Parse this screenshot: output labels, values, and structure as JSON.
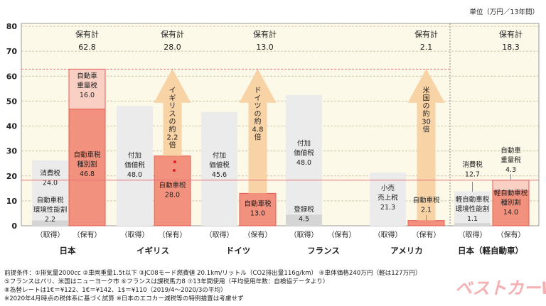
{
  "chart_data": {
    "type": "bar",
    "stacked": true,
    "unit_label": "単位（万円／13年間）",
    "ylim": [
      0,
      80
    ],
    "yticks": [
      0,
      10,
      20,
      30,
      40,
      50,
      60,
      70,
      80
    ],
    "grid": true,
    "colors": {
      "background": "#fdf9e8",
      "acq": "#ebebeb",
      "acq_dark": "#d5d5d5",
      "own": "#f2917d",
      "own_light": "#f9d0c3",
      "own_border": "#e65a55",
      "arrow": "#f8d3a6",
      "ref_line": "#e8707a"
    },
    "reference_lines": [
      {
        "value": 62.8,
        "style": "dashed"
      },
      {
        "value": 18.3,
        "style": "solid"
      }
    ],
    "groups": [
      {
        "name": "日本",
        "acq": {
          "label": "（取得）",
          "segments": [
            {
              "name": "自動車税 環境性能割",
              "value": 2.2
            },
            {
              "name": "消費税",
              "value": 24.0
            }
          ],
          "texts": [
            [
              "消費税",
              "24.0"
            ],
            [
              "自動車税",
              "環境性能割",
              "2.2"
            ]
          ]
        },
        "own": {
          "label": "（保有）",
          "segments": [
            {
              "name": "自動車税 種別割",
              "value": 46.8
            },
            {
              "name": "自動車重量税",
              "value": 16.0
            }
          ],
          "texts": [
            [
              "自動車",
              "重量税",
              "16.0"
            ],
            [
              "自動車税",
              "種別割",
              "46.8"
            ]
          ]
        },
        "total": {
          "label": "保有計",
          "value": "62.8"
        }
      },
      {
        "name": "イギリス",
        "acq": {
          "label": "（取得）",
          "segments": [
            {
              "name": "付加価値税",
              "value": 48.0
            }
          ],
          "texts": [
            [
              "付加",
              "価値税",
              "48.0"
            ]
          ]
        },
        "own": {
          "label": "（保有）",
          "segments": [
            {
              "name": "自動車税",
              "value": 28.0
            }
          ],
          "texts": [
            [
              "自動車税",
              "28.0"
            ]
          ]
        },
        "total": {
          "label": "保有計",
          "value": "28.0"
        },
        "arrow": "イギリスの約2.2倍"
      },
      {
        "name": "ドイツ",
        "acq": {
          "label": "（取得）",
          "segments": [
            {
              "name": "付加価値税",
              "value": 45.6
            }
          ],
          "texts": [
            [
              "付加",
              "価値税",
              "45.6"
            ]
          ]
        },
        "own": {
          "label": "（保有）",
          "segments": [
            {
              "name": "自動車税",
              "value": 13.0
            }
          ],
          "texts": [
            [
              "自動車税",
              "13.0"
            ]
          ]
        },
        "total": {
          "label": "保有計",
          "value": "13.0"
        },
        "arrow": "ドイツの約4.8倍"
      },
      {
        "name": "フランス",
        "acq": {
          "label": "（取得）",
          "segments": [
            {
              "name": "登録税",
              "value": 4.5
            },
            {
              "name": "付加価値税",
              "value": 48.0
            }
          ],
          "texts": [
            [
              "付加",
              "価値税",
              "48.0"
            ],
            [
              "登録税",
              "4.5"
            ]
          ]
        },
        "own": {
          "label": "（保有）",
          "segments": [],
          "texts": []
        }
      },
      {
        "name": "アメリカ",
        "acq": {
          "label": "（取得）",
          "segments": [
            {
              "name": "小売売上税",
              "value": 21.3
            }
          ],
          "texts": [
            [
              "小売",
              "売上税",
              "21.3"
            ]
          ]
        },
        "own": {
          "label": "（保有）",
          "segments": [
            {
              "name": "自動車税",
              "value": 2.1
            }
          ],
          "texts": [
            [
              "自動車税",
              "2.1"
            ]
          ]
        },
        "total": {
          "label": "保有計",
          "value": "2.1"
        },
        "arrow": "米国の約30倍"
      },
      {
        "name": "日本（軽自動車）",
        "acq": {
          "label": "（取得）",
          "segments": [
            {
              "name": "軽自動車税 環境性能割",
              "value": 1.1
            },
            {
              "name": "消費税",
              "value": 12.7
            }
          ],
          "texts": [
            [
              "消費税",
              "12.7"
            ],
            [
              "軽自動車税",
              "環境性能割",
              "1.1"
            ]
          ]
        },
        "own": {
          "label": "（保有）",
          "segments": [
            {
              "name": "軽自動車税 種別割",
              "value": 14.0
            },
            {
              "name": "自動車重量税",
              "value": 4.3
            }
          ],
          "texts": [
            [
              "自動車",
              "重量税",
              "4.3"
            ],
            [
              "軽自動車税",
              "種別割",
              "14.0"
            ]
          ]
        },
        "total": {
          "label": "保有計",
          "value": "18.3"
        }
      }
    ]
  },
  "notes": [
    "前提条件：①排気量2000cc ②車両重量1.5t以下 ③JC08モード燃費値 20.1km/リットル（CO2排出量116g/km） ④車体価格240万円（軽は127万円）",
    "⑤フランスはパリ、米国はニューヨーク市 ⑥フランスは課税馬力8 ⑦13年間使用（平均使用年数：自検協データより）",
    "⑧為替レートは1€＝¥122、1€＝¥142、1$＝¥110（2019/4～2020/3の平均）",
    "※2020年4月時点の税体系に基づく試算 ※日本のエコカー減税等の特例措置は考慮せず"
  ],
  "logo": "ベストカーWeb"
}
